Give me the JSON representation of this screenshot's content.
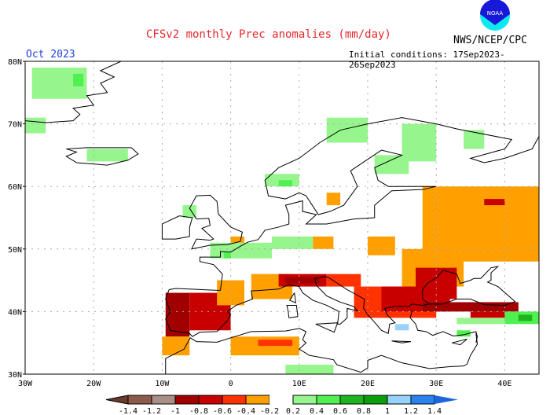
{
  "header": {
    "title": "CFSv2 monthly Prec anomalies (mm/day)",
    "organization": "NWS/NCEP/CPC",
    "logo_text": "NOAA",
    "target_month": "Oct 2023",
    "initial_conditions": "Initial conditions: 17Sep2023-26Sep2023"
  },
  "map": {
    "lon_range": [
      -30,
      45
    ],
    "lat_range": [
      30,
      80
    ],
    "lat_labels": [
      {
        "lat": 80,
        "label": "80N"
      },
      {
        "lat": 70,
        "label": "70N"
      },
      {
        "lat": 60,
        "label": "60N"
      },
      {
        "lat": 50,
        "label": "50N"
      },
      {
        "lat": 40,
        "label": "40N"
      },
      {
        "lat": 30,
        "label": "30N"
      }
    ],
    "lon_labels": [
      {
        "lon": -30,
        "label": "30W"
      },
      {
        "lon": -20,
        "label": "20W"
      },
      {
        "lon": -10,
        "label": "10W"
      },
      {
        "lon": 0,
        "label": "0"
      },
      {
        "lon": 10,
        "label": "10E"
      },
      {
        "lon": 20,
        "label": "20E"
      },
      {
        "lon": 30,
        "label": "30E"
      },
      {
        "lon": 40,
        "label": "40E"
      }
    ],
    "anomaly_regions": [
      {
        "lon": [
          -29,
          -21
        ],
        "lat": [
          74,
          79
        ],
        "value": 0.3
      },
      {
        "lon": [
          -23,
          -21.5
        ],
        "lat": [
          76,
          78
        ],
        "value": 0.5
      },
      {
        "lon": [
          -30,
          -27
        ],
        "lat": [
          68.5,
          71
        ],
        "value": 0.3
      },
      {
        "lon": [
          -21,
          -15
        ],
        "lat": [
          64,
          66
        ],
        "value": 0.3
      },
      {
        "lon": [
          14,
          20
        ],
        "lat": [
          67,
          71
        ],
        "value": 0.3
      },
      {
        "lon": [
          25,
          30
        ],
        "lat": [
          64,
          70
        ],
        "value": 0.3
      },
      {
        "lon": [
          34,
          37
        ],
        "lat": [
          66,
          69
        ],
        "value": 0.3
      },
      {
        "lon": [
          21,
          26
        ],
        "lat": [
          62,
          65
        ],
        "value": 0.3
      },
      {
        "lon": [
          5,
          10
        ],
        "lat": [
          60,
          62
        ],
        "value": 0.3
      },
      {
        "lon": [
          7,
          9
        ],
        "lat": [
          60,
          61
        ],
        "value": 0.5
      },
      {
        "lon": [
          -7,
          -5
        ],
        "lat": [
          55,
          57
        ],
        "value": 0.3
      },
      {
        "lon": [
          28,
          45
        ],
        "lat": [
          48,
          60
        ],
        "value": -0.3
      },
      {
        "lon": [
          37,
          40
        ],
        "lat": [
          57,
          58
        ],
        "value": -0.7
      },
      {
        "lon": [
          -9.5,
          -6
        ],
        "lat": [
          36,
          43
        ],
        "value": -0.9
      },
      {
        "lon": [
          -6,
          0
        ],
        "lat": [
          37,
          43
        ],
        "value": -0.7
      },
      {
        "lon": [
          -2,
          2
        ],
        "lat": [
          41,
          45
        ],
        "value": -0.3
      },
      {
        "lon": [
          -10,
          -6
        ],
        "lat": [
          33,
          36
        ],
        "value": -0.3
      },
      {
        "lon": [
          -3,
          6
        ],
        "lat": [
          48.5,
          51
        ],
        "value": 0.3
      },
      {
        "lon": [
          -1,
          0
        ],
        "lat": [
          48.5,
          49.5
        ],
        "value": 0.5
      },
      {
        "lon": [
          6,
          12
        ],
        "lat": [
          50,
          52
        ],
        "value": 0.3
      },
      {
        "lon": [
          3,
          9
        ],
        "lat": [
          42,
          46
        ],
        "value": -0.3
      },
      {
        "lon": [
          7,
          14
        ],
        "lat": [
          44,
          46
        ],
        "value": -0.7
      },
      {
        "lon": [
          8,
          13
        ],
        "lat": [
          44.5,
          45.5
        ],
        "value": -0.9
      },
      {
        "lon": [
          14,
          19
        ],
        "lat": [
          44,
          46
        ],
        "value": -0.5
      },
      {
        "lon": [
          0,
          10
        ],
        "lat": [
          33,
          36
        ],
        "value": -0.3
      },
      {
        "lon": [
          4,
          9
        ],
        "lat": [
          34.5,
          35.5
        ],
        "value": -0.5
      },
      {
        "lon": [
          8,
          15
        ],
        "lat": [
          30,
          31.5
        ],
        "value": 0.3
      },
      {
        "lon": [
          25,
          34
        ],
        "lat": [
          44,
          50
        ],
        "value": -0.3
      },
      {
        "lon": [
          18,
          30
        ],
        "lat": [
          39,
          44
        ],
        "value": -0.5
      },
      {
        "lon": [
          22,
          32
        ],
        "lat": [
          40,
          44
        ],
        "value": -0.7
      },
      {
        "lon": [
          27,
          33
        ],
        "lat": [
          42,
          47
        ],
        "value": -0.7
      },
      {
        "lon": [
          28,
          42
        ],
        "lat": [
          40,
          41.5
        ],
        "value": -0.9
      },
      {
        "lon": [
          35,
          41
        ],
        "lat": [
          39,
          40
        ],
        "value": -0.7
      },
      {
        "lon": [
          40,
          45
        ],
        "lat": [
          38,
          40
        ],
        "value": 0.5
      },
      {
        "lon": [
          42,
          44
        ],
        "lat": [
          38.5,
          39.5
        ],
        "value": 0.7
      },
      {
        "lon": [
          33,
          40
        ],
        "lat": [
          38,
          39
        ],
        "value": 0.4
      },
      {
        "lon": [
          24,
          26
        ],
        "lat": [
          37,
          38
        ],
        "value": 1.1
      },
      {
        "lon": [
          33,
          35
        ],
        "lat": [
          36,
          37
        ],
        "value": 0.5
      },
      {
        "lon": [
          20,
          24
        ],
        "lat": [
          49,
          52
        ],
        "value": -0.3
      },
      {
        "lon": [
          12,
          15
        ],
        "lat": [
          50,
          52
        ],
        "value": -0.3
      },
      {
        "lon": [
          0,
          2
        ],
        "lat": [
          51,
          52
        ],
        "value": -0.3
      },
      {
        "lon": [
          14,
          16
        ],
        "lat": [
          57,
          59
        ],
        "value": -0.3
      }
    ]
  },
  "colorbar": {
    "labels": [
      "-1.4",
      "-1.2",
      "-1",
      "-0.8",
      "-0.6",
      "-0.4",
      "-0.2",
      "0.2",
      "0.4",
      "0.6",
      "0.8",
      "1",
      "1.2",
      "1.4"
    ],
    "colors": [
      "#6b3a2e",
      "#8b5a4a",
      "#a89088",
      "#a00000",
      "#c80000",
      "#ff3200",
      "#ffa000",
      "#ffffff",
      "#96f58c",
      "#50f050",
      "#1eb41e",
      "#0aa00a",
      "#96d2fa",
      "#2882f0",
      "#1e64dc"
    ]
  }
}
